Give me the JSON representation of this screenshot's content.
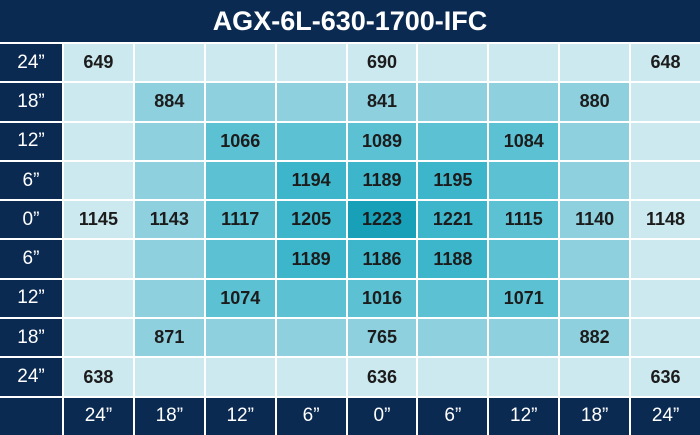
{
  "title": "AGX-6L-630-1700-IFC",
  "row_labels": [
    "24”",
    "18”",
    "12”",
    "6”",
    "0”",
    "6”",
    "12”",
    "18”",
    "24”"
  ],
  "column_labels": [
    "24”",
    "18”",
    "12”",
    "6”",
    "0”",
    "6”",
    "12”",
    "18”",
    "24”"
  ],
  "rows": [
    [
      649,
      null,
      null,
      null,
      690,
      null,
      null,
      null,
      648
    ],
    [
      null,
      884,
      null,
      null,
      841,
      null,
      null,
      880,
      null
    ],
    [
      null,
      null,
      1066,
      null,
      1089,
      null,
      1084,
      null,
      null
    ],
    [
      null,
      null,
      null,
      1194,
      1189,
      1195,
      null,
      null,
      null
    ],
    [
      1145,
      1143,
      1117,
      1205,
      1223,
      1221,
      1115,
      1140,
      1148
    ],
    [
      null,
      null,
      null,
      1189,
      1186,
      1188,
      null,
      null,
      null
    ],
    [
      null,
      null,
      1074,
      null,
      1016,
      null,
      1071,
      null,
      null
    ],
    [
      null,
      871,
      null,
      null,
      765,
      null,
      null,
      882,
      null
    ],
    [
      638,
      null,
      null,
      null,
      636,
      null,
      null,
      null,
      636
    ]
  ]
}
